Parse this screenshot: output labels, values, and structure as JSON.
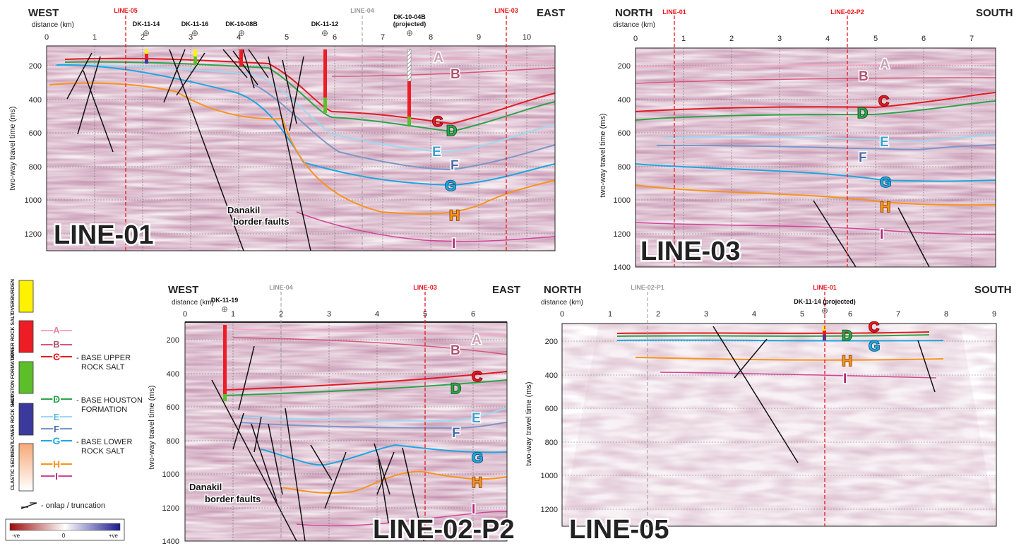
{
  "axis": {
    "distance_label": "distance (km)",
    "time_label": "two-way travel time (ms)"
  },
  "sections": {
    "line01": {
      "title": "LINE-01",
      "left_dir": "WEST",
      "right_dir": "EAST",
      "x_ticks": [
        "0",
        "1",
        "2",
        "3",
        "4",
        "5",
        "6",
        "7",
        "8",
        "9",
        "10"
      ],
      "y_ticks": [
        "200",
        "400",
        "600",
        "800",
        "1000",
        "1200"
      ],
      "markers": [
        {
          "label": "LINE-05",
          "km": 1.65,
          "color": "#e8141c"
        },
        {
          "label": "LINE-04",
          "km": 6.6,
          "color": "#999999"
        },
        {
          "label": "LINE-03",
          "km": 9.6,
          "color": "#e8141c"
        }
      ],
      "wells": [
        {
          "label": "DK-11-14",
          "km": 2.05
        },
        {
          "label": "DK-11-16",
          "km": 3.1
        },
        {
          "label": "DK-10-08B",
          "km": 4.05
        },
        {
          "label": "DK-11-12",
          "km": 5.85
        },
        {
          "label": "DK-10-04B",
          "label2": "(projected)",
          "km": 7.6
        }
      ],
      "horizon_letters": [
        "A",
        "B",
        "C",
        "D",
        "E",
        "F",
        "G",
        "H",
        "I"
      ],
      "annotation_line1": "Danakil",
      "annotation_line2": "border faults"
    },
    "line03": {
      "title": "LINE-03",
      "left_dir": "NORTH",
      "right_dir": "SOUTH",
      "x_ticks": [
        "0",
        "1",
        "2",
        "3",
        "4",
        "5",
        "6",
        "7"
      ],
      "y_ticks": [
        "200",
        "400",
        "600",
        "800",
        "1000",
        "1200",
        "1400"
      ],
      "markers": [
        {
          "label": "LINE-01",
          "km": 0.8,
          "color": "#e8141c"
        },
        {
          "label": "LINE-02-P2",
          "km": 4.45,
          "color": "#e8141c"
        }
      ],
      "horizon_letters": [
        "A",
        "B",
        "C",
        "D",
        "E",
        "F",
        "G",
        "H",
        "I"
      ]
    },
    "line02": {
      "title": "LINE-02-P2",
      "left_dir": "WEST",
      "right_dir": "EAST",
      "x_ticks": [
        "0",
        "1",
        "2",
        "3",
        "4",
        "5",
        "6"
      ],
      "y_ticks": [
        "200",
        "400",
        "600",
        "800",
        "1000",
        "1200",
        "1400"
      ],
      "markers": [
        {
          "label": "LINE-04",
          "km": 2.0,
          "color": "#999999"
        },
        {
          "label": "LINE-03",
          "km": 5.0,
          "color": "#e8141c"
        }
      ],
      "wells": [
        {
          "label": "DK-11-19",
          "km": 0.85
        }
      ],
      "horizon_letters": [
        "A",
        "B",
        "C",
        "D",
        "E",
        "F",
        "G",
        "H",
        "I"
      ],
      "annotation_line1": "Danakil",
      "annotation_line2": "border faults"
    },
    "line05": {
      "title": "LINE-05",
      "left_dir": "NORTH",
      "right_dir": "SOUTH",
      "x_ticks": [
        "0",
        "1",
        "2",
        "3",
        "4",
        "5",
        "6",
        "7",
        "8",
        "9"
      ],
      "y_ticks": [
        "200",
        "400",
        "600",
        "800",
        "1000",
        "1200"
      ],
      "markers": [
        {
          "label": "LINE-02-P1",
          "km": 1.75,
          "color": "#999999"
        },
        {
          "label": "LINE-01",
          "km": 5.4,
          "color": "#e8141c"
        }
      ],
      "wells": [
        {
          "label": "DK-11-14 (projected)",
          "km": 5.4
        }
      ],
      "horizon_letters": [
        "C",
        "D",
        "G",
        "H",
        "I"
      ]
    }
  },
  "legend": {
    "units": [
      {
        "label": "OVERBURDEN",
        "color": "#fff200"
      },
      {
        "label": "UPPER ROCK SALT",
        "color": "#ee1c25"
      },
      {
        "label": "HOUSTON FORMATION",
        "color": "#5cbf2a"
      },
      {
        "label": "LOWER ROCK SALT",
        "color": "#3b3a9c"
      },
      {
        "label": "CLASTIC SEDIMENT",
        "color": "#f7a878"
      }
    ],
    "horizons": [
      {
        "letter": "A",
        "color": "#f4a9c4",
        "desc": ""
      },
      {
        "letter": "B",
        "color": "#d5587a",
        "desc": ""
      },
      {
        "letter": "C",
        "color": "#e11b22",
        "desc": "- BASE UPPER",
        "desc2": "ROCK SALT"
      },
      {
        "letter": "D",
        "color": "#2ca44a",
        "desc": "- BASE HOUSTON",
        "desc2": "FORMATION"
      },
      {
        "letter": "E",
        "color": "#9ed8f2",
        "desc": ""
      },
      {
        "letter": "F",
        "color": "#7b97c9",
        "desc": ""
      },
      {
        "letter": "G",
        "color": "#1ea7e1",
        "desc": "- BASE LOWER",
        "desc2": "ROCK SALT"
      },
      {
        "letter": "H",
        "color": "#f7941d",
        "desc": ""
      },
      {
        "letter": "I",
        "color": "#d2449a",
        "desc": ""
      }
    ],
    "onlap_label": "- onlap / truncation",
    "colorbar": {
      "neg": "-ve",
      "zero": "0",
      "pos": "+ve"
    }
  },
  "colors": {
    "A": "#f4a9c4",
    "B": "#d5587a",
    "C": "#e11b22",
    "D": "#2ca44a",
    "E": "#9ed8f2",
    "F": "#7b97c9",
    "G": "#1ea7e1",
    "H": "#f7941d",
    "I": "#d2449a"
  }
}
